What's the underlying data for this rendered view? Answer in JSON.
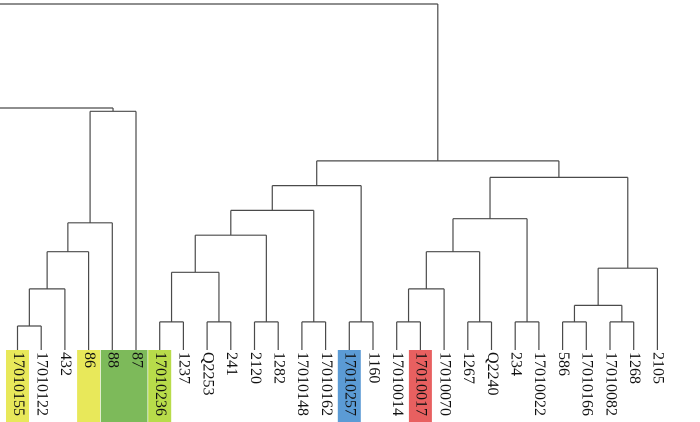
{
  "chart_data": {
    "type": "dendrogram",
    "title": "",
    "orientation": "leaves-bottom",
    "leaves": [
      "17010155",
      "17010122",
      "432",
      "86",
      "88",
      "87",
      "17010236",
      "1237",
      "Q2253",
      "241",
      "2120",
      "1282",
      "17010148",
      "17010162",
      "17010257",
      "1160",
      "17010014",
      "17010017",
      "17010070",
      "1267",
      "Q2240",
      "234",
      "17010022",
      "586",
      "17010166",
      "17010082",
      "1268",
      "2105"
    ],
    "highlights": [
      {
        "leaves": [
          "17010155"
        ],
        "color": "#e8e85a"
      },
      {
        "leaves": [
          "86"
        ],
        "color": "#e8e85a"
      },
      {
        "leaves": [
          "88",
          "87"
        ],
        "color": "#7dba5a"
      },
      {
        "leaves": [
          "17010236"
        ],
        "color": "#b8dc4a"
      },
      {
        "leaves": [
          "17010257"
        ],
        "color": "#5b9bd5"
      },
      {
        "leaves": [
          "17010017"
        ],
        "color": "#e86060"
      }
    ],
    "tree": {
      "h": 1.0,
      "children": [
        {
          "h": 0.74,
          "children": [
            {
              "h": 0.47,
              "children": [
                {
                  "h": 0.4,
                  "children": [
                    {
                      "h": 0.31,
                      "children": [
                        {
                          "h": 0.22,
                          "children": [
                            {
                              "leaf": "17010155"
                            },
                            {
                              "leaf": "17010122"
                            }
                          ]
                        },
                        {
                          "leaf": "432"
                        }
                      ]
                    },
                    {
                      "leaf": "86"
                    }
                  ]
                },
                {
                  "leaf": "88"
                }
              ]
            },
            {
              "leaf": "87"
            }
          ]
        },
        {
          "h": 0.62,
          "children": [
            {
              "h": 0.56,
              "children": [
                {
                  "h": 0.5,
                  "children": [
                    {
                      "h": 0.44,
                      "children": [
                        {
                          "h": 0.35,
                          "children": [
                            {
                              "h": 0.23,
                              "children": [
                                {
                                  "leaf": "17010236"
                                },
                                {
                                  "leaf": "1237"
                                }
                              ]
                            },
                            {
                              "h": 0.23,
                              "children": [
                                {
                                  "leaf": "Q2253"
                                },
                                {
                                  "leaf": "241"
                                }
                              ]
                            }
                          ]
                        },
                        {
                          "h": 0.23,
                          "children": [
                            {
                              "leaf": "2120"
                            },
                            {
                              "leaf": "1282"
                            }
                          ]
                        }
                      ]
                    },
                    {
                      "h": 0.23,
                      "children": [
                        {
                          "leaf": "17010148"
                        },
                        {
                          "leaf": "17010162"
                        }
                      ]
                    }
                  ]
                },
                {
                  "h": 0.23,
                  "children": [
                    {
                      "leaf": "17010257"
                    },
                    {
                      "leaf": "1160"
                    }
                  ]
                }
              ]
            },
            {
              "h": 0.58,
              "children": [
                {
                  "h": 0.48,
                  "children": [
                    {
                      "h": 0.4,
                      "children": [
                        {
                          "h": 0.31,
                          "children": [
                            {
                              "h": 0.23,
                              "children": [
                                {
                                  "leaf": "17010014"
                                },
                                {
                                  "leaf": "17010017"
                                }
                              ]
                            },
                            {
                              "leaf": "17010070"
                            }
                          ]
                        },
                        {
                          "h": 0.23,
                          "children": [
                            {
                              "leaf": "1267"
                            },
                            {
                              "leaf": "Q2240"
                            }
                          ]
                        }
                      ]
                    },
                    {
                      "h": 0.23,
                      "children": [
                        {
                          "leaf": "234"
                        },
                        {
                          "leaf": "17010022"
                        }
                      ]
                    }
                  ]
                },
                {
                  "h": 0.36,
                  "children": [
                    {
                      "h": 0.3,
                      "children": [
                        {
                          "h": 0.27,
                          "children": [
                            {
                              "h": 0.23,
                              "children": [
                                {
                                  "leaf": "586"
                                },
                                {
                                  "leaf": "17010166"
                                }
                              ]
                            },
                            {
                              "h": 0.23,
                              "children": [
                                {
                                  "leaf": "17010082"
                                },
                                {
                                  "leaf": "1268"
                                }
                              ]
                            }
                          ]
                        }
                      ]
                    },
                    {
                      "leaf": "2105"
                    }
                  ]
                }
              ]
            }
          ]
        }
      ]
    }
  }
}
